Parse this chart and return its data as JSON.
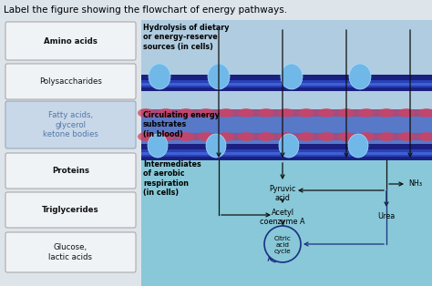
{
  "title": "Label the figure showing the flowchart of energy pathways.",
  "title_fontsize": 7.5,
  "left_bg": "#dde4ea",
  "right_top_bg": "#b8cfe0",
  "right_blood_bg": "#6080c8",
  "right_bottom_bg": "#90c8d8",
  "boxes": [
    {
      "label": "Amino acids",
      "bold": true,
      "highlight": false
    },
    {
      "label": "Polysaccharides",
      "bold": false,
      "highlight": false
    },
    {
      "label": "Fatty acids,\nglycerol\nketone bodies",
      "bold": false,
      "highlight": true
    },
    {
      "label": "Proteins",
      "bold": true,
      "highlight": false
    },
    {
      "label": "Triglycerides",
      "bold": true,
      "highlight": false
    },
    {
      "label": "Glucose,\nlactic acids",
      "bold": false,
      "highlight": false
    }
  ],
  "label_hydrolysis": "Hydrolysis of dietary\nor energy-reserve\nsources (in cells)",
  "label_circulating": "Circulating energy\nsubstrates\n(in blood)",
  "label_intermediates": "Intermediates\nof aerobic\nrespiration\n(in cells)",
  "label_pyruvic": "Pyruvic\nacid",
  "label_acetyl": "Acetyl\ncoenzyme A",
  "label_citric": "Citric\nacid\ncycle",
  "label_nh3": "NH₃",
  "label_urea": "Urea",
  "mem_dark": "#1a2080",
  "mem_mid": "#2840b8",
  "mem_light": "#4060d0",
  "rbc_color": "#cc3355",
  "blob_color": "#70b8e8",
  "arrow_color": "#111111",
  "citric_arrow_color": "#1a3080"
}
